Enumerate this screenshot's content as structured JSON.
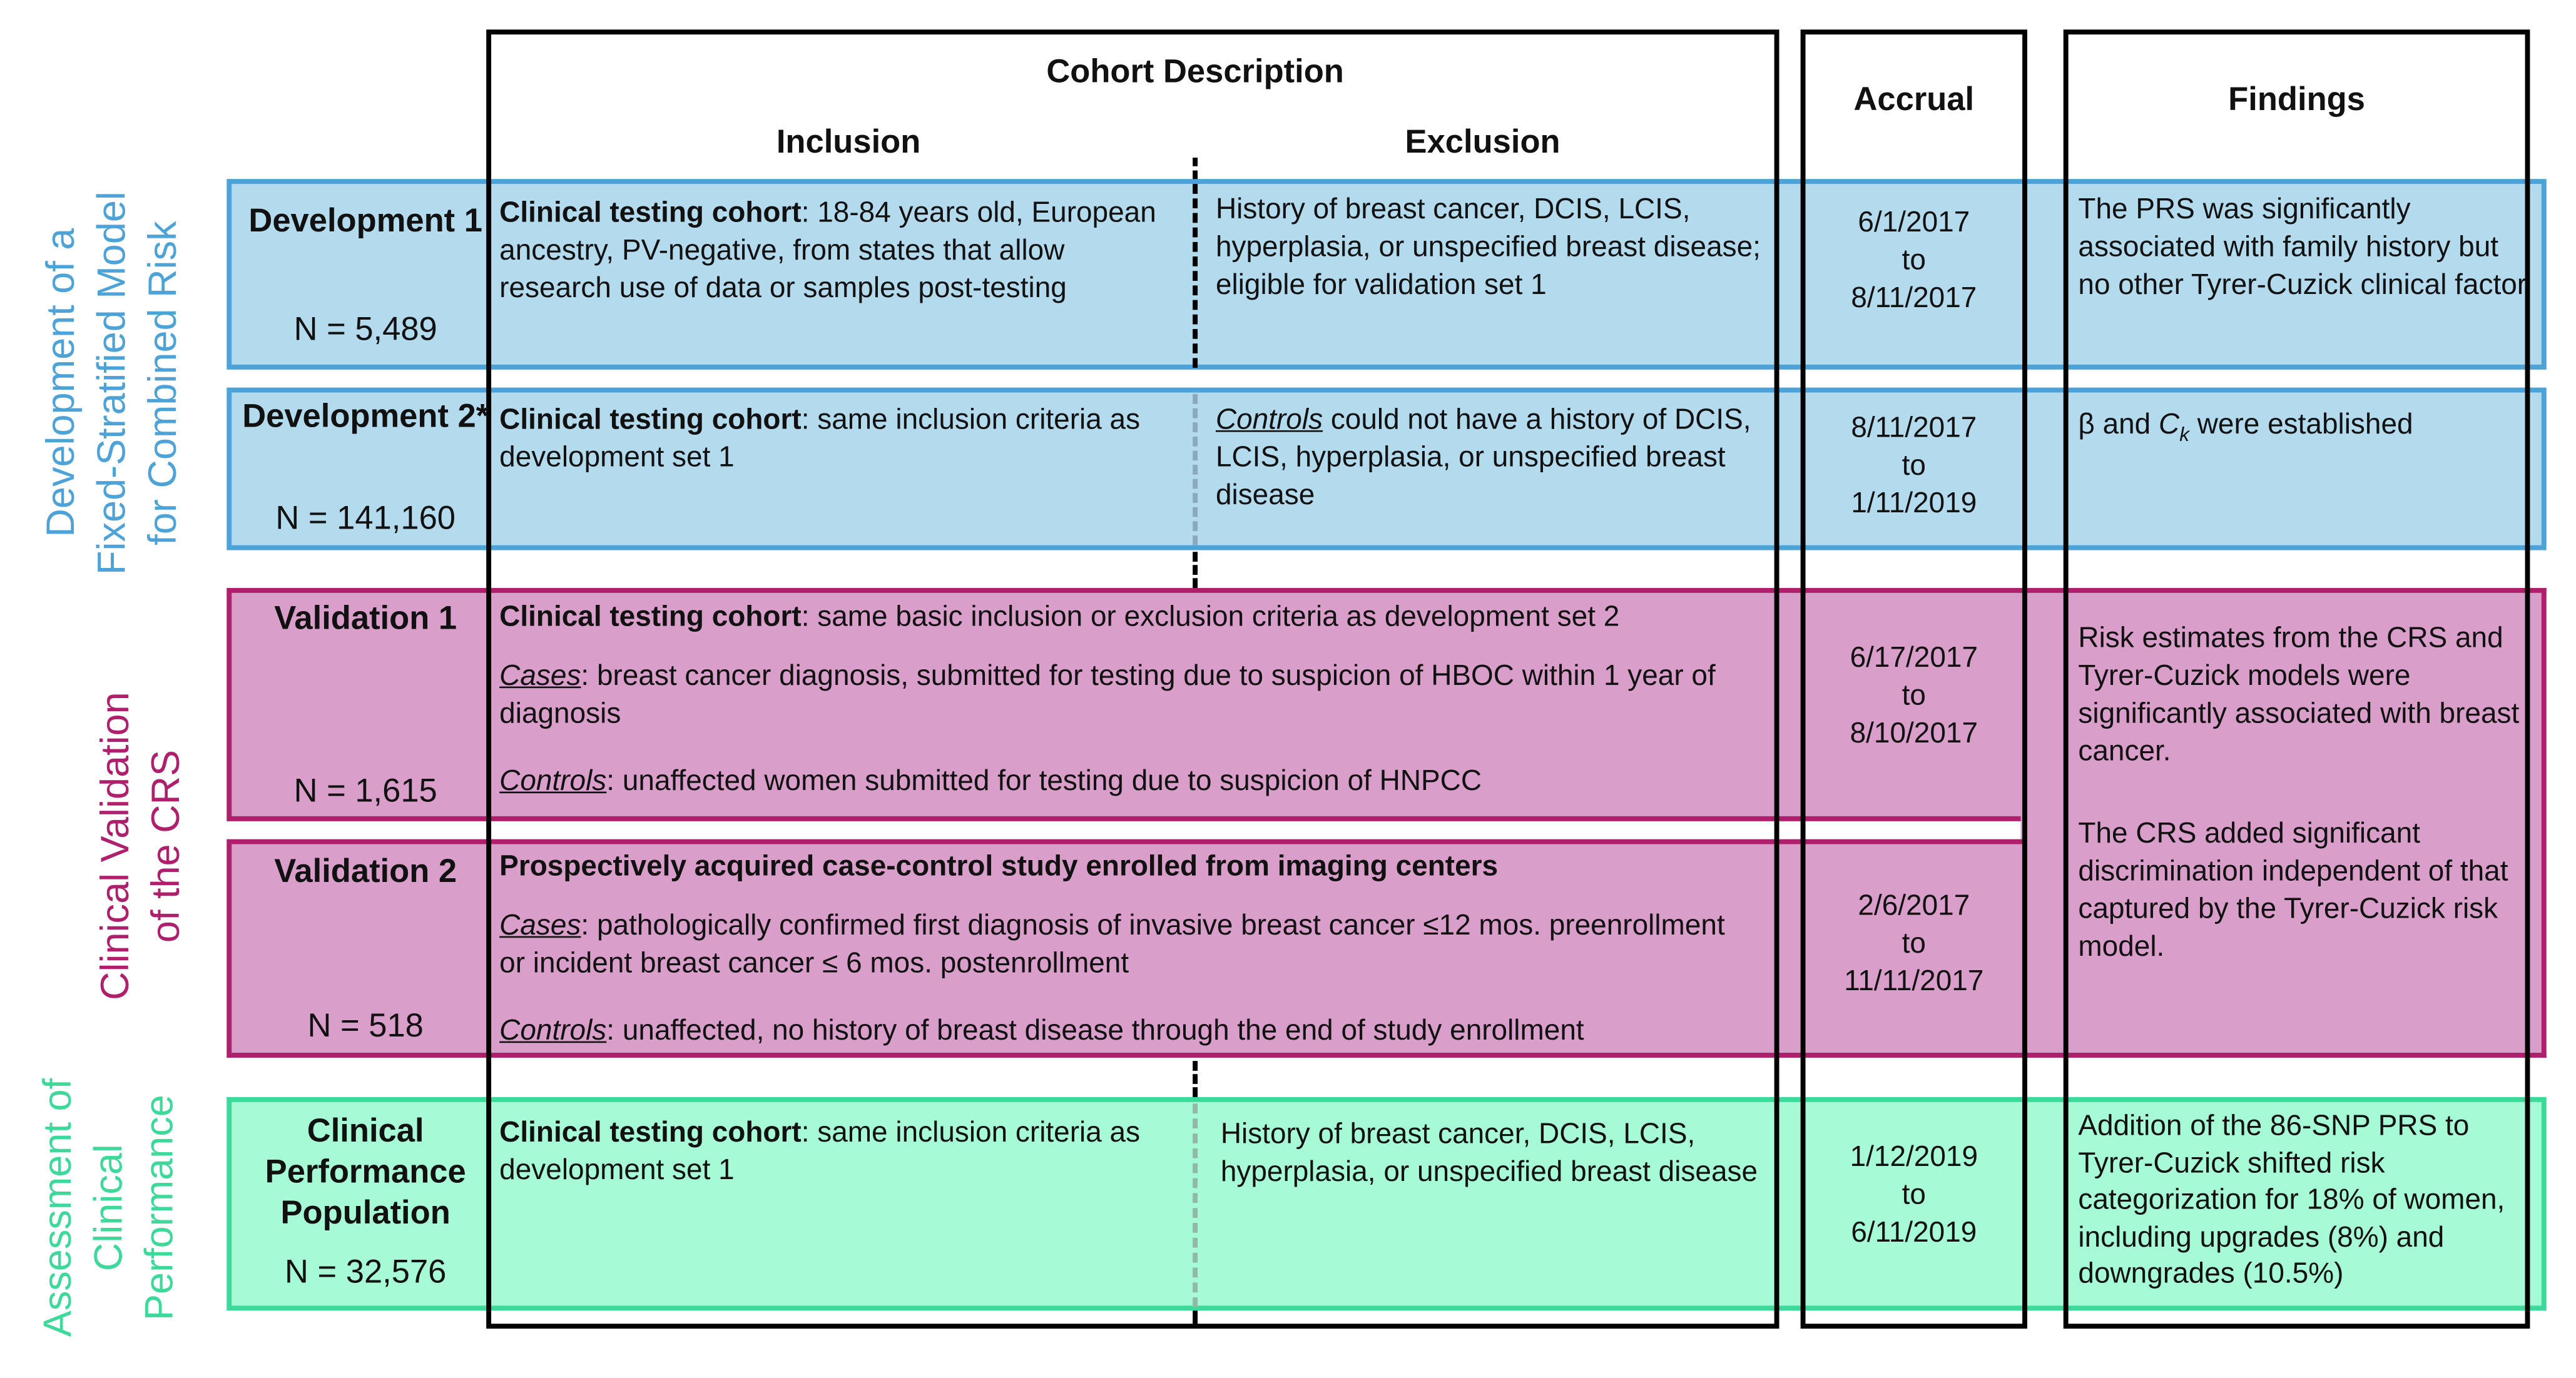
{
  "headers": {
    "cohort_description": "Cohort Description",
    "inclusion": "Inclusion",
    "exclusion": "Exclusion",
    "accrual": "Accrual",
    "findings": "Findings"
  },
  "side_labels": {
    "development": "Development of a\nFixed-Stratified Model\nfor Combined Risk",
    "validation": "Clinical Validation\nof the CRS",
    "assessment": "Assessment of\nClinical\nPerformance"
  },
  "colors": {
    "development": "#4da3d8",
    "validation": "#b01f6b",
    "assessment": "#3dd99a"
  },
  "rows": {
    "dev1": {
      "name": "Development 1",
      "n": "N = 5,489",
      "inclusion_bold": "Clinical testing cohort",
      "inclusion_rest": ": 18-84 years old, European ancestry, PV-negative, from states that allow research use of data or samples post-testing",
      "exclusion": "History of breast cancer, DCIS, LCIS, hyperplasia, or unspecified breast disease; eligible for validation set 1",
      "accrual_start": "6/1/2017",
      "accrual_to": "to",
      "accrual_end": "8/11/2017",
      "findings": "The PRS was significantly associated with family history but no other Tyrer-Cuzick clinical factor"
    },
    "dev2": {
      "name": "Development 2*",
      "n": "N = 141,160",
      "inclusion_bold": "Clinical testing cohort",
      "inclusion_rest": ": same inclusion criteria as development set 1",
      "exclusion_italic": "Controls",
      "exclusion_rest": " could not have a history of DCIS, LCIS, hyperplasia, or unspecified breast disease",
      "accrual_start": "8/11/2017",
      "accrual_to": "to",
      "accrual_end": "1/11/2019",
      "findings_beta": "β and ",
      "findings_c": "C",
      "findings_k": "k",
      "findings_rest": " were established"
    },
    "val1": {
      "name": "Validation 1",
      "n": "N = 1,615",
      "cohort_bold": "Clinical testing cohort",
      "cohort_rest": ": same basic inclusion or exclusion criteria as development set 2",
      "cases_label": "Cases",
      "cases_text": ": breast cancer diagnosis, submitted for testing due to suspicion of HBOC within 1 year of diagnosis",
      "controls_label": "Controls",
      "controls_text": ": unaffected women submitted for testing due to suspicion of HNPCC",
      "accrual_start": "6/17/2017",
      "accrual_to": "to",
      "accrual_end": "8/10/2017"
    },
    "val2": {
      "name": "Validation 2",
      "n": "N = 518",
      "cohort_bold": "Prospectively acquired case-control study enrolled from imaging centers",
      "cases_label": "Cases",
      "cases_text": ": pathologically confirmed first diagnosis of invasive breast cancer ≤12 mos. preenrollment or incident breast cancer  ≤ 6 mos. postenrollment",
      "controls_label": "Controls",
      "controls_text": ": unaffected, no history of breast disease through the end of study enrollment",
      "accrual_start": "2/6/2017",
      "accrual_to": "to",
      "accrual_end": "11/11/2017"
    },
    "validation_findings_1": "Risk estimates from the CRS and Tyrer-Cuzick models were significantly associated with breast cancer.",
    "validation_findings_2": "The CRS added significant discrimination independent of that captured by the Tyrer-Cuzick risk model.",
    "clinical": {
      "name": "Clinical Performance Population",
      "n": "N = 32,576",
      "inclusion_bold": "Clinical testing cohort",
      "inclusion_rest": ": same inclusion criteria as development set 1",
      "exclusion": "History of breast cancer, DCIS, LCIS, hyperplasia, or unspecified breast disease",
      "accrual_start": "1/12/2019",
      "accrual_to": "to",
      "accrual_end": "6/11/2019",
      "findings": "Addition of the 86-SNP PRS to Tyrer-Cuzick shifted risk categorization for 18% of women, including upgrades (8%) and downgrades (10.5%)"
    }
  }
}
